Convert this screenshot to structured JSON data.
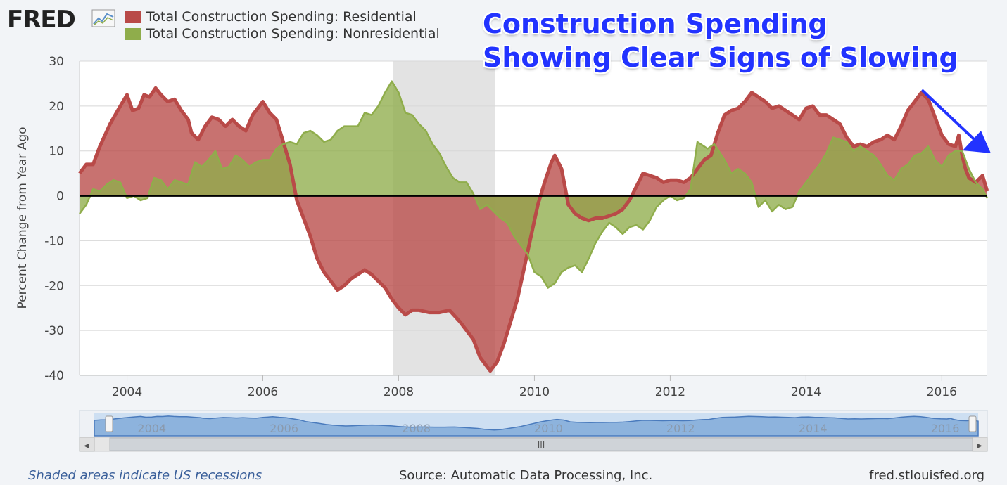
{
  "brand": {
    "logo_text": "FRED"
  },
  "headline": {
    "line1": "Construction Spending",
    "line2": "Showing Clear Signs of Slowing"
  },
  "footer": {
    "recession_note": "Shaded areas indicate US recessions",
    "source": "Source: Automatic Data Processing, Inc.",
    "site": "fred.stlouisfed.org"
  },
  "navigator": {
    "grip_label": "III",
    "left_arrow": "◀",
    "right_arrow": "▶"
  },
  "colors": {
    "residential": "#b94a48",
    "nonresidential": "#8fad4b",
    "recession": "#e3e3e3",
    "headline": "#2233ff",
    "arrow": "#2233ff"
  },
  "chart_data": {
    "type": "area",
    "xlabel": "",
    "ylabel": "Percent Change from Year Ago",
    "ylim": [
      -40,
      30
    ],
    "yticks": [
      30,
      20,
      10,
      0,
      -10,
      -20,
      -30,
      -40
    ],
    "xlim": [
      2003.3,
      2016.67
    ],
    "xticks": [
      "2004",
      "2006",
      "2008",
      "2010",
      "2012",
      "2014",
      "2016"
    ],
    "navigator_ticks": [
      "2004",
      "2006",
      "2008",
      "2010",
      "2012",
      "2014",
      "2016"
    ],
    "recession": {
      "start": 2007.92,
      "end": 2009.42
    },
    "grid": true,
    "series": [
      {
        "name": "Total Construction Spending: Residential",
        "color": "#b94a48",
        "points": [
          [
            2003.3,
            5
          ],
          [
            2003.4,
            7
          ],
          [
            2003.5,
            7
          ],
          [
            2003.6,
            11
          ],
          [
            2003.75,
            16
          ],
          [
            2003.9,
            20
          ],
          [
            2004.0,
            22.5
          ],
          [
            2004.08,
            19
          ],
          [
            2004.17,
            19.5
          ],
          [
            2004.25,
            22.5
          ],
          [
            2004.33,
            22
          ],
          [
            2004.42,
            24
          ],
          [
            2004.5,
            22.5
          ],
          [
            2004.6,
            21
          ],
          [
            2004.7,
            21.5
          ],
          [
            2004.8,
            19
          ],
          [
            2004.9,
            17
          ],
          [
            2004.95,
            14
          ],
          [
            2005.05,
            12.5
          ],
          [
            2005.15,
            15.5
          ],
          [
            2005.25,
            17.5
          ],
          [
            2005.35,
            17
          ],
          [
            2005.45,
            15.5
          ],
          [
            2005.55,
            17
          ],
          [
            2005.65,
            15.5
          ],
          [
            2005.75,
            14.5
          ],
          [
            2005.85,
            18
          ],
          [
            2006.0,
            21
          ],
          [
            2006.1,
            18.5
          ],
          [
            2006.2,
            17
          ],
          [
            2006.3,
            12
          ],
          [
            2006.4,
            7
          ],
          [
            2006.5,
            -1
          ],
          [
            2006.6,
            -5
          ],
          [
            2006.7,
            -9
          ],
          [
            2006.8,
            -14
          ],
          [
            2006.9,
            -17
          ],
          [
            2007.0,
            -19
          ],
          [
            2007.1,
            -21
          ],
          [
            2007.2,
            -20
          ],
          [
            2007.3,
            -18.5
          ],
          [
            2007.4,
            -17.5
          ],
          [
            2007.5,
            -16.5
          ],
          [
            2007.6,
            -17.5
          ],
          [
            2007.7,
            -19
          ],
          [
            2007.8,
            -20.5
          ],
          [
            2007.9,
            -23
          ],
          [
            2008.0,
            -25
          ],
          [
            2008.1,
            -26.5
          ],
          [
            2008.2,
            -25.5
          ],
          [
            2008.3,
            -25.5
          ],
          [
            2008.45,
            -26
          ],
          [
            2008.6,
            -26
          ],
          [
            2008.75,
            -25.5
          ],
          [
            2008.9,
            -28
          ],
          [
            2009.0,
            -30
          ],
          [
            2009.1,
            -32
          ],
          [
            2009.2,
            -36
          ],
          [
            2009.3,
            -38
          ],
          [
            2009.35,
            -39
          ],
          [
            2009.45,
            -37
          ],
          [
            2009.55,
            -33
          ],
          [
            2009.65,
            -28
          ],
          [
            2009.75,
            -23
          ],
          [
            2009.85,
            -16
          ],
          [
            2009.95,
            -9
          ],
          [
            2010.05,
            -2
          ],
          [
            2010.15,
            3
          ],
          [
            2010.25,
            7.5
          ],
          [
            2010.3,
            9
          ],
          [
            2010.4,
            6
          ],
          [
            2010.5,
            -2
          ],
          [
            2010.6,
            -4
          ],
          [
            2010.7,
            -5
          ],
          [
            2010.8,
            -5.5
          ],
          [
            2010.9,
            -5
          ],
          [
            2011.0,
            -5
          ],
          [
            2011.1,
            -4.5
          ],
          [
            2011.2,
            -4
          ],
          [
            2011.3,
            -3
          ],
          [
            2011.4,
            -1
          ],
          [
            2011.5,
            2
          ],
          [
            2011.6,
            5
          ],
          [
            2011.7,
            4.5
          ],
          [
            2011.8,
            4
          ],
          [
            2011.9,
            3
          ],
          [
            2012.0,
            3.5
          ],
          [
            2012.1,
            3.5
          ],
          [
            2012.2,
            3
          ],
          [
            2012.3,
            4
          ],
          [
            2012.4,
            6
          ],
          [
            2012.5,
            8
          ],
          [
            2012.6,
            9
          ],
          [
            2012.7,
            14
          ],
          [
            2012.8,
            18
          ],
          [
            2012.9,
            19
          ],
          [
            2013.0,
            19.5
          ],
          [
            2013.1,
            21
          ],
          [
            2013.2,
            23
          ],
          [
            2013.3,
            22
          ],
          [
            2013.4,
            21
          ],
          [
            2013.5,
            19.5
          ],
          [
            2013.6,
            20
          ],
          [
            2013.7,
            19
          ],
          [
            2013.8,
            18
          ],
          [
            2013.9,
            17
          ],
          [
            2014.0,
            19.5
          ],
          [
            2014.1,
            20
          ],
          [
            2014.2,
            18
          ],
          [
            2014.3,
            18
          ],
          [
            2014.4,
            17
          ],
          [
            2014.5,
            16
          ],
          [
            2014.6,
            13
          ],
          [
            2014.7,
            11
          ],
          [
            2014.8,
            11.5
          ],
          [
            2014.9,
            11
          ],
          [
            2015.0,
            12
          ],
          [
            2015.1,
            12.5
          ],
          [
            2015.2,
            13.5
          ],
          [
            2015.3,
            12.5
          ],
          [
            2015.4,
            15.5
          ],
          [
            2015.5,
            19
          ],
          [
            2015.6,
            21
          ],
          [
            2015.7,
            23
          ],
          [
            2015.8,
            21.5
          ],
          [
            2015.9,
            17.5
          ],
          [
            2016.0,
            13.5
          ],
          [
            2016.1,
            11.5
          ],
          [
            2016.2,
            11
          ],
          [
            2016.25,
            13.5
          ],
          [
            2016.3,
            9
          ],
          [
            2016.35,
            6
          ],
          [
            2016.4,
            4
          ],
          [
            2016.5,
            3
          ],
          [
            2016.6,
            4.5
          ],
          [
            2016.67,
            1
          ]
        ]
      },
      {
        "name": "Total Construction Spending: Nonresidential",
        "color": "#8fad4b",
        "points": [
          [
            2003.3,
            -4
          ],
          [
            2003.4,
            -2
          ],
          [
            2003.5,
            1.5
          ],
          [
            2003.6,
            1
          ],
          [
            2003.7,
            2.5
          ],
          [
            2003.8,
            3.5
          ],
          [
            2003.9,
            3
          ],
          [
            2004.0,
            -0.5
          ],
          [
            2004.1,
            0
          ],
          [
            2004.2,
            -1
          ],
          [
            2004.3,
            -0.5
          ],
          [
            2004.4,
            4
          ],
          [
            2004.5,
            3.5
          ],
          [
            2004.6,
            1.5
          ],
          [
            2004.7,
            3.5
          ],
          [
            2004.8,
            3
          ],
          [
            2004.9,
            2.5
          ],
          [
            2005.0,
            7.5
          ],
          [
            2005.1,
            6.5
          ],
          [
            2005.2,
            8
          ],
          [
            2005.3,
            10
          ],
          [
            2005.4,
            6
          ],
          [
            2005.5,
            6.5
          ],
          [
            2005.6,
            9
          ],
          [
            2005.7,
            8
          ],
          [
            2005.8,
            6.5
          ],
          [
            2005.9,
            7.5
          ],
          [
            2006.0,
            8
          ],
          [
            2006.1,
            8
          ],
          [
            2006.2,
            10.5
          ],
          [
            2006.3,
            11.5
          ],
          [
            2006.4,
            12
          ],
          [
            2006.5,
            11.5
          ],
          [
            2006.6,
            14
          ],
          [
            2006.7,
            14.5
          ],
          [
            2006.8,
            13.5
          ],
          [
            2006.9,
            12
          ],
          [
            2007.0,
            12.5
          ],
          [
            2007.1,
            14.5
          ],
          [
            2007.2,
            15.5
          ],
          [
            2007.3,
            15.5
          ],
          [
            2007.4,
            15.5
          ],
          [
            2007.5,
            18.5
          ],
          [
            2007.6,
            18
          ],
          [
            2007.7,
            20
          ],
          [
            2007.8,
            23
          ],
          [
            2007.9,
            25.5
          ],
          [
            2008.0,
            23
          ],
          [
            2008.1,
            18.5
          ],
          [
            2008.2,
            18
          ],
          [
            2008.3,
            16
          ],
          [
            2008.4,
            14.5
          ],
          [
            2008.5,
            11.5
          ],
          [
            2008.6,
            9.5
          ],
          [
            2008.7,
            6.5
          ],
          [
            2008.8,
            4
          ],
          [
            2008.9,
            3
          ],
          [
            2009.0,
            3
          ],
          [
            2009.1,
            0.5
          ],
          [
            2009.2,
            -3
          ],
          [
            2009.3,
            -2
          ],
          [
            2009.4,
            -3.5
          ],
          [
            2009.5,
            -5
          ],
          [
            2009.6,
            -6
          ],
          [
            2009.7,
            -9
          ],
          [
            2009.8,
            -11
          ],
          [
            2009.9,
            -13
          ],
          [
            2010.0,
            -17
          ],
          [
            2010.1,
            -18
          ],
          [
            2010.2,
            -20.5
          ],
          [
            2010.3,
            -19.5
          ],
          [
            2010.4,
            -17
          ],
          [
            2010.5,
            -16
          ],
          [
            2010.6,
            -15.5
          ],
          [
            2010.7,
            -17
          ],
          [
            2010.8,
            -14
          ],
          [
            2010.9,
            -10.5
          ],
          [
            2011.0,
            -8
          ],
          [
            2011.1,
            -6
          ],
          [
            2011.2,
            -7
          ],
          [
            2011.3,
            -8.5
          ],
          [
            2011.4,
            -7
          ],
          [
            2011.5,
            -6.5
          ],
          [
            2011.6,
            -7.5
          ],
          [
            2011.7,
            -5.5
          ],
          [
            2011.8,
            -2.5
          ],
          [
            2011.9,
            -1
          ],
          [
            2012.0,
            0
          ],
          [
            2012.1,
            -1
          ],
          [
            2012.2,
            -0.5
          ],
          [
            2012.3,
            1.5
          ],
          [
            2012.4,
            12
          ],
          [
            2012.5,
            11
          ],
          [
            2012.55,
            10.5
          ],
          [
            2012.65,
            11.5
          ],
          [
            2012.8,
            8
          ],
          [
            2012.9,
            5
          ],
          [
            2013.0,
            6
          ],
          [
            2013.1,
            5
          ],
          [
            2013.2,
            3
          ],
          [
            2013.3,
            -2.5
          ],
          [
            2013.4,
            -1
          ],
          [
            2013.5,
            -3.5
          ],
          [
            2013.6,
            -2
          ],
          [
            2013.7,
            -3
          ],
          [
            2013.8,
            -2.5
          ],
          [
            2013.9,
            1
          ],
          [
            2014.0,
            3
          ],
          [
            2014.1,
            5
          ],
          [
            2014.2,
            7
          ],
          [
            2014.3,
            9.5
          ],
          [
            2014.4,
            13
          ],
          [
            2014.5,
            12.5
          ],
          [
            2014.6,
            12
          ],
          [
            2014.7,
            10
          ],
          [
            2014.8,
            11
          ],
          [
            2014.9,
            10
          ],
          [
            2015.0,
            9
          ],
          [
            2015.1,
            7
          ],
          [
            2015.2,
            4.5
          ],
          [
            2015.3,
            3.5
          ],
          [
            2015.4,
            6
          ],
          [
            2015.5,
            7
          ],
          [
            2015.6,
            9
          ],
          [
            2015.7,
            9.5
          ],
          [
            2015.8,
            11
          ],
          [
            2015.9,
            8
          ],
          [
            2016.0,
            6.5
          ],
          [
            2016.1,
            9
          ],
          [
            2016.2,
            10
          ],
          [
            2016.3,
            10
          ],
          [
            2016.4,
            6
          ],
          [
            2016.5,
            3
          ],
          [
            2016.6,
            1.5
          ],
          [
            2016.67,
            -0.5
          ]
        ]
      }
    ]
  }
}
